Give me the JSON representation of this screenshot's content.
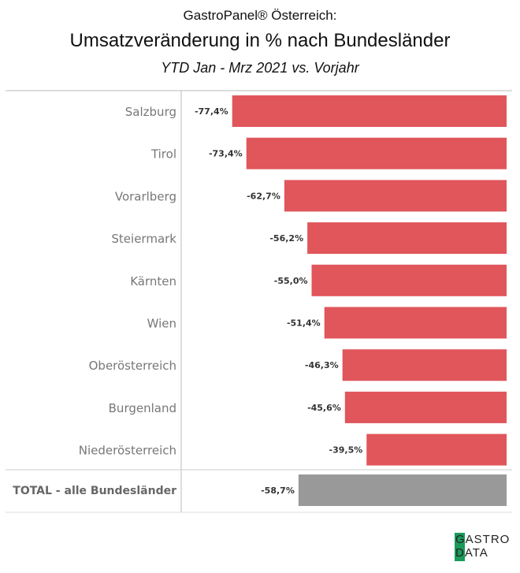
{
  "header": {
    "line1": "GastroPanel® Österreich:",
    "line2": "Umsatzveränderung in % nach Bundesländer",
    "line3": "YTD Jan - Mrz 2021 vs. Vorjahr"
  },
  "chart_data": {
    "type": "bar",
    "orientation": "horizontal",
    "categories": [
      "Salzburg",
      "Tirol",
      "Vorarlberg",
      "Steiermark",
      "Kärnten",
      "Wien",
      "Oberösterreich",
      "Burgenland",
      "Niederösterreich"
    ],
    "values": [
      -77.4,
      -73.4,
      -62.7,
      -56.2,
      -55.0,
      -51.4,
      -46.3,
      -45.6,
      -39.5
    ],
    "labels": [
      "-77,4%",
      "-73,4%",
      "-62,7%",
      "-56,2%",
      "-55,0%",
      "-51,4%",
      "-46,3%",
      "-45,6%",
      "-39,5%"
    ],
    "total": {
      "category": "TOTAL - alle Bundesländer",
      "value": -58.7,
      "label": "-58,7%"
    },
    "bar_color": "#e0565b",
    "total_color": "#999999",
    "grid": false
  },
  "logo": {
    "text": "GASTRO DATA",
    "color": "#1a9a5a"
  }
}
